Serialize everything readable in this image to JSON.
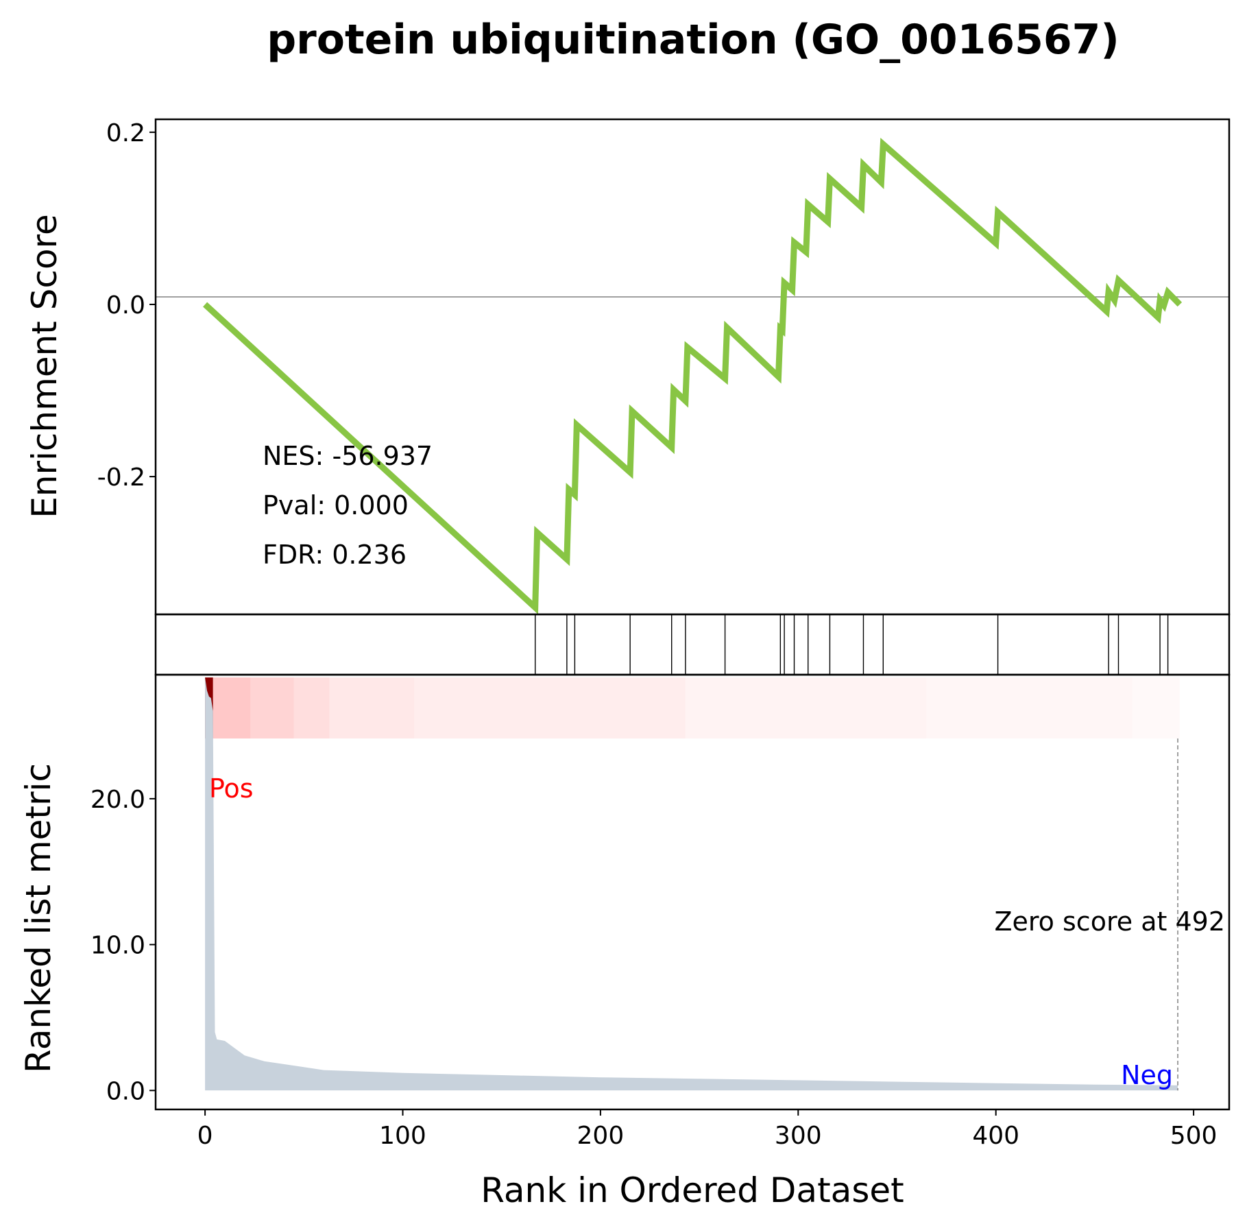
{
  "chart_data": {
    "type": "line",
    "title": "protein ubiquitination (GO_0016567)",
    "xlabel": "Rank in Ordered Dataset",
    "top_panel": {
      "ylabel": "Enrichment Score",
      "ylim": [
        -0.36,
        0.215
      ],
      "yticks": [
        0.2,
        0.0,
        -0.2
      ],
      "ytick_labels": [
        "0.2",
        "0.0",
        "-0.2"
      ],
      "series": [
        {
          "color": "#88c544",
          "points": [
            [
              0,
              0.0
            ],
            [
              167,
              -0.352
            ],
            [
              168,
              -0.265
            ],
            [
              183,
              -0.296
            ],
            [
              184,
              -0.215
            ],
            [
              187,
              -0.221
            ],
            [
              188,
              -0.14
            ],
            [
              215,
              -0.195
            ],
            [
              216,
              -0.124
            ],
            [
              236,
              -0.166
            ],
            [
              237,
              -0.099
            ],
            [
              243,
              -0.112
            ],
            [
              244,
              -0.05
            ],
            [
              263,
              -0.086
            ],
            [
              264,
              -0.027
            ],
            [
              290,
              -0.084
            ],
            [
              291,
              -0.028
            ],
            [
              292,
              -0.03
            ],
            [
              293,
              0.025
            ],
            [
              297,
              0.017
            ],
            [
              298,
              0.072
            ],
            [
              304,
              0.061
            ],
            [
              305,
              0.116
            ],
            [
              315,
              0.096
            ],
            [
              316,
              0.146
            ],
            [
              332,
              0.113
            ],
            [
              333,
              0.162
            ],
            [
              342,
              0.142
            ],
            [
              343,
              0.186
            ],
            [
              400,
              0.071
            ],
            [
              401,
              0.107
            ],
            [
              456,
              -0.008
            ],
            [
              457,
              0.015
            ],
            [
              460,
              0.005
            ],
            [
              462,
              0.028
            ],
            [
              482,
              -0.015
            ],
            [
              483,
              0.005
            ],
            [
              485,
              -0.001
            ],
            [
              487,
              0.014
            ],
            [
              493,
              0.0
            ]
          ]
        }
      ],
      "annotations": [
        "NES: -56.937",
        "Pval: 0.000",
        "FDR: 0.236"
      ]
    },
    "hits_panel": {
      "hit_ranks": [
        167,
        183,
        187,
        215,
        236,
        243,
        263,
        291,
        293,
        298,
        305,
        316,
        333,
        343,
        401,
        457,
        462,
        483,
        487
      ]
    },
    "heat_band": {
      "colors": [
        "#ffc8c8",
        "#ffd4d4",
        "#ffdede",
        "#ffe8e8",
        "#ffeded",
        "#fff3f3",
        "#fff6f6",
        "#fff9f9"
      ],
      "bounds": [
        4,
        23,
        45,
        63,
        106,
        243,
        365,
        469,
        493
      ],
      "top_color": "#8b0000"
    },
    "bottom_panel": {
      "ylabel": "Ranked list metric",
      "ylim": [
        -1.3,
        28.5
      ],
      "yticks": [
        0,
        10,
        20
      ],
      "ytick_labels": [
        "0.0",
        "10.0",
        "20.0"
      ],
      "series": [
        {
          "color": "#c8d2dc",
          "points": [
            [
              0,
              28.3
            ],
            [
              1,
              27.4
            ],
            [
              2,
              27.0
            ],
            [
              3,
              26.9
            ],
            [
              4,
              26.0
            ],
            [
              5,
              4.0
            ],
            [
              6,
              3.5
            ],
            [
              10,
              3.4
            ],
            [
              12,
              3.2
            ],
            [
              16,
              2.8
            ],
            [
              20,
              2.4
            ],
            [
              25,
              2.2
            ],
            [
              30,
              2.0
            ],
            [
              40,
              1.8
            ],
            [
              50,
              1.6
            ],
            [
              60,
              1.4
            ],
            [
              70,
              1.35
            ],
            [
              100,
              1.2
            ],
            [
              150,
              1.05
            ],
            [
              200,
              0.9
            ],
            [
              250,
              0.8
            ],
            [
              300,
              0.7
            ],
            [
              350,
              0.6
            ],
            [
              400,
              0.5
            ],
            [
              450,
              0.4
            ],
            [
              492,
              0.35
            ]
          ]
        }
      ],
      "labels": {
        "pos": "Pos",
        "neg": "Neg",
        "zero": "Zero score at 492"
      },
      "zero_score_at": 492
    },
    "xlim": [
      -25,
      518
    ],
    "xticks": [
      0,
      100,
      200,
      300,
      400,
      500
    ],
    "xtick_labels": [
      "0",
      "100",
      "200",
      "300",
      "400",
      "500"
    ]
  }
}
